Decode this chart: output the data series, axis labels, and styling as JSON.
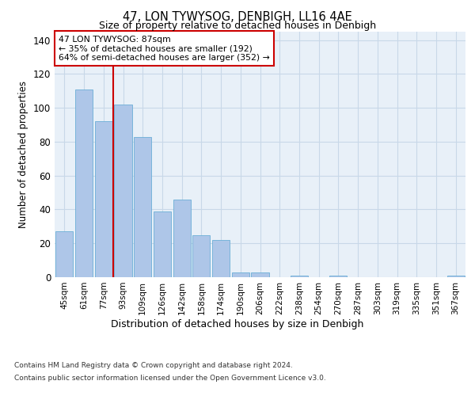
{
  "title": "47, LON TYWYSOG, DENBIGH, LL16 4AE",
  "subtitle": "Size of property relative to detached houses in Denbigh",
  "xlabel": "Distribution of detached houses by size in Denbigh",
  "ylabel": "Number of detached properties",
  "categories": [
    "45sqm",
    "61sqm",
    "77sqm",
    "93sqm",
    "109sqm",
    "126sqm",
    "142sqm",
    "158sqm",
    "174sqm",
    "190sqm",
    "206sqm",
    "222sqm",
    "238sqm",
    "254sqm",
    "270sqm",
    "287sqm",
    "303sqm",
    "319sqm",
    "335sqm",
    "351sqm",
    "367sqm"
  ],
  "values": [
    27,
    111,
    92,
    102,
    83,
    39,
    46,
    25,
    22,
    3,
    3,
    0,
    1,
    0,
    1,
    0,
    0,
    0,
    0,
    0,
    1
  ],
  "bar_color": "#aec6e8",
  "bar_edge_color": "#6baed6",
  "vline_color": "#cc0000",
  "annotation_title": "47 LON TYWYSOG: 87sqm",
  "annotation_line1": "← 35% of detached houses are smaller (192)",
  "annotation_line2": "64% of semi-detached houses are larger (352) →",
  "annotation_box_color": "#ffffff",
  "annotation_box_edge_color": "#cc0000",
  "ylim": [
    0,
    145
  ],
  "yticks": [
    0,
    20,
    40,
    60,
    80,
    100,
    120,
    140
  ],
  "grid_color": "#c8d8e8",
  "background_color": "#e8f0f8",
  "footer_line1": "Contains HM Land Registry data © Crown copyright and database right 2024.",
  "footer_line2": "Contains public sector information licensed under the Open Government Licence v3.0."
}
